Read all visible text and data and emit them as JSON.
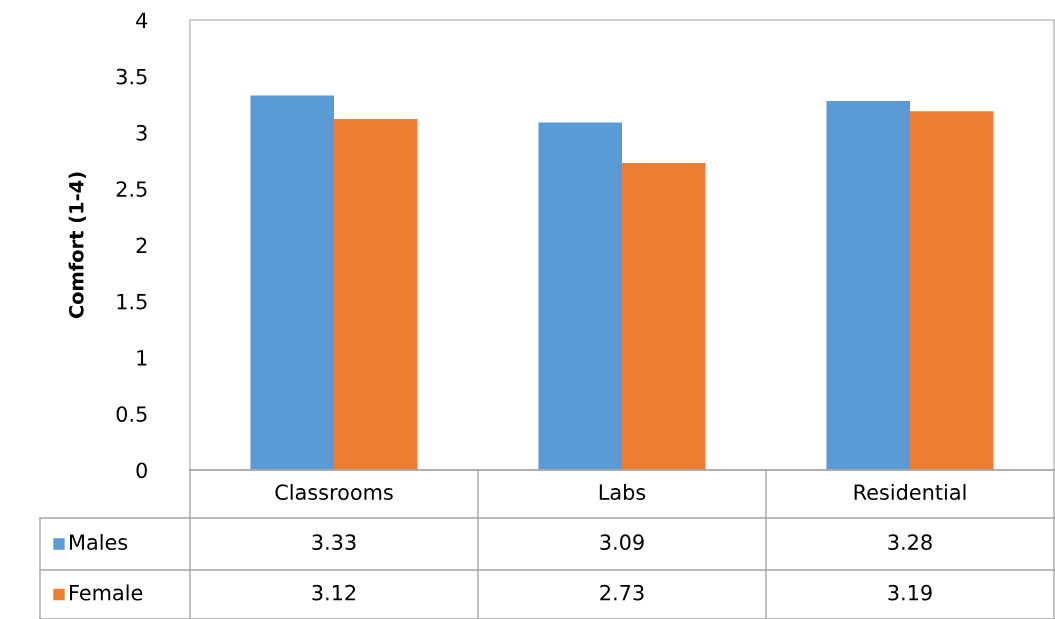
{
  "chart_data": {
    "type": "bar",
    "ylabel": "Comfort (1-4)",
    "categories": [
      "Classrooms",
      "Labs",
      "Residential"
    ],
    "series": [
      {
        "name": "Males",
        "color": "#5b9bd5",
        "values": [
          3.33,
          3.09,
          3.28
        ]
      },
      {
        "name": "Female",
        "color": "#ed7d31",
        "values": [
          3.12,
          2.73,
          3.19
        ]
      }
    ],
    "ylim": [
      0,
      4
    ],
    "yticks": [
      0,
      0.5,
      1,
      1.5,
      2,
      2.5,
      3,
      3.5,
      4
    ],
    "grid": false,
    "legend": "bottom",
    "data_labels": true
  }
}
